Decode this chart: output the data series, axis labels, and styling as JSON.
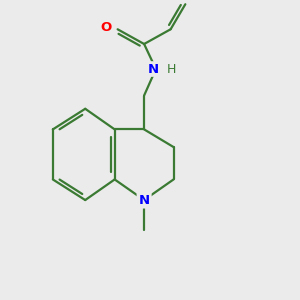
{
  "background_color": "#ebebeb",
  "bond_color": "#3a7a32",
  "N_color": "#0000ff",
  "O_color": "#ff0000",
  "line_width": 1.6,
  "figsize": [
    3.0,
    3.0
  ],
  "dpi": 100,
  "xlim": [
    0,
    10
  ],
  "ylim": [
    0,
    10
  ]
}
